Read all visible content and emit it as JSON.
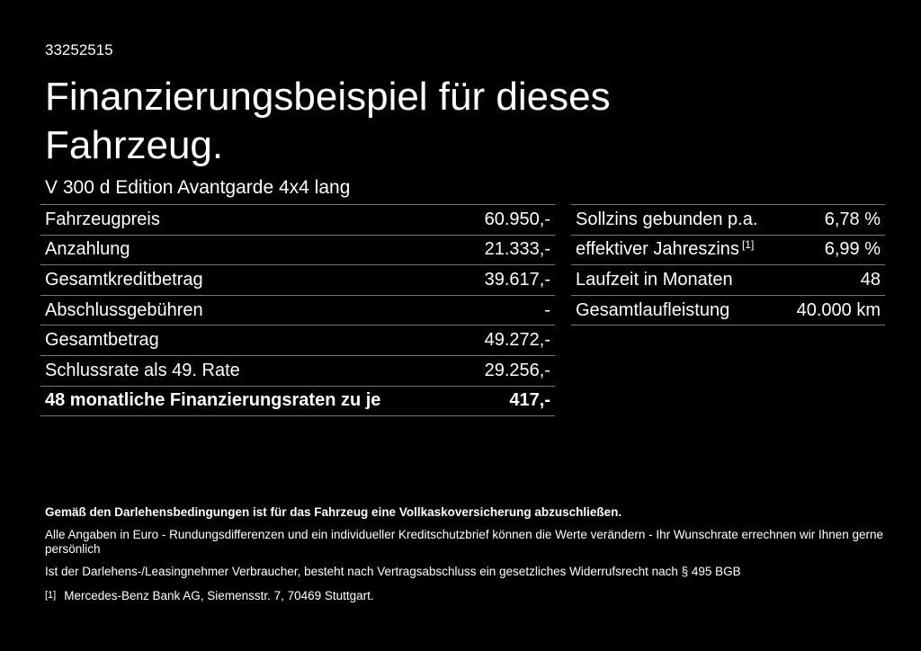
{
  "page": {
    "background": "#000000",
    "text_color": "#ffffff",
    "divider_color": "#777777"
  },
  "header": {
    "vehicle_id": "33252515",
    "title": "Finanzierungsbeispiel für dieses Fahrzeug.",
    "model": "V 300 d Edition Avantgarde 4x4 lang"
  },
  "finance_table": {
    "rows": [
      {
        "label": "Fahrzeugpreis",
        "value": "60.950,-"
      },
      {
        "label": "Anzahlung",
        "value": "21.333,-"
      },
      {
        "label": "Gesamtkreditbetrag",
        "value": "39.617,-"
      },
      {
        "label": "Abschlussgebühren",
        "value": "-"
      },
      {
        "label": "Gesamtbetrag",
        "value": "49.272,-"
      },
      {
        "label": "Schlussrate als 49. Rate",
        "value": "29.256,-"
      },
      {
        "label": "48 monatliche Finanzierungsraten zu je",
        "value": "417,-",
        "bold": true
      }
    ]
  },
  "conditions_table": {
    "rows": [
      {
        "label": "Sollzins gebunden p.a.",
        "value": "6,78 %"
      },
      {
        "label": "effektiver Jahreszins",
        "superscript": "[1]",
        "value": "6,99 %"
      },
      {
        "label": "Laufzeit in Monaten",
        "value": "48"
      },
      {
        "label": "Gesamtlaufleistung",
        "value": "40.000 km"
      }
    ]
  },
  "footer": {
    "insurance_note": "Gemäß den Darlehensbedingungen ist für das Fahrzeug eine Vollkaskoversicherung abzuschließen.",
    "disclaimer_line1": "Alle Angaben in Euro - Rundungsdifferenzen und ein individueller Kreditschutzbrief können die Werte verändern - Ihr Wunschrate errechnen wir Ihnen gerne persönlich",
    "disclaimer_line2": "Ist der Darlehens-/Leasingnehmer Verbraucher, besteht nach Vertragsabschluss ein gesetzliches Widerrufsrecht nach § 495 BGB",
    "footnote_marker": "[1]",
    "footnote_text": "Mercedes-Benz Bank AG, Siemensstr. 7, 70469 Stuttgart."
  }
}
